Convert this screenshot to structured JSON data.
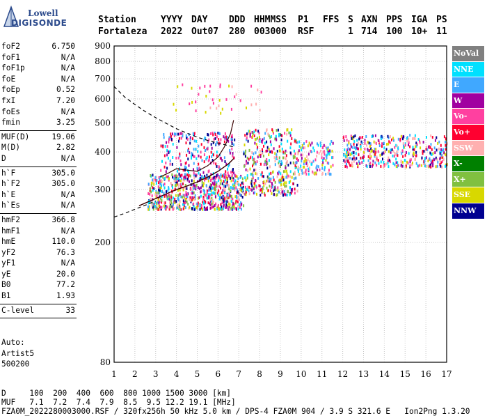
{
  "logo": {
    "line1": "Lowell",
    "line2": "DIGISONDE"
  },
  "header": {
    "labels": [
      "Station",
      "YYYY",
      "DAY",
      "DDD",
      "HHMMSS",
      "P1",
      "FFS",
      "S",
      "AXN",
      "PPS",
      "IGA",
      "PS"
    ],
    "values": [
      "Fortaleza",
      "2022",
      "Out07",
      "280",
      "003000",
      "RSF",
      "1",
      "714",
      "100",
      "10+",
      "11"
    ]
  },
  "params_group1": [
    {
      "k": "foF2",
      "v": "6.750"
    },
    {
      "k": "foF1",
      "v": "N/A"
    },
    {
      "k": "foF1p",
      "v": "N/A"
    },
    {
      "k": "foE",
      "v": "N/A"
    },
    {
      "k": "foEp",
      "v": "0.52"
    },
    {
      "k": "fxI",
      "v": "7.20"
    },
    {
      "k": "foEs",
      "v": "N/A"
    },
    {
      "k": "fmin",
      "v": "3.25"
    }
  ],
  "params_group2": [
    {
      "k": "MUF(D)",
      "v": "19.06"
    },
    {
      "k": "M(D)",
      "v": "2.82"
    },
    {
      "k": "D",
      "v": "N/A"
    }
  ],
  "params_group3": [
    {
      "k": "h`F",
      "v": "305.0"
    },
    {
      "k": "h`F2",
      "v": "305.0"
    },
    {
      "k": "h`E",
      "v": "N/A"
    },
    {
      "k": "h`Es",
      "v": "N/A"
    }
  ],
  "params_group4": [
    {
      "k": "hmF2",
      "v": "366.8"
    },
    {
      "k": "hmF1",
      "v": "N/A"
    },
    {
      "k": "hmE",
      "v": "110.0"
    },
    {
      "k": "yF2",
      "v": "76.3"
    },
    {
      "k": "yF1",
      "v": "N/A"
    },
    {
      "k": "yE",
      "v": "20.0"
    },
    {
      "k": "B0",
      "v": "77.2"
    },
    {
      "k": "B1",
      "v": "1.93"
    }
  ],
  "params_group5": [
    {
      "k": "C-level",
      "v": "33"
    }
  ],
  "auto": {
    "line1": "Auto:",
    "line2": "Artist5",
    "line3": "500200"
  },
  "legend": [
    {
      "label": "NoVal",
      "color": "#808080"
    },
    {
      "label": "NNE",
      "color": "#00e0ff"
    },
    {
      "label": "E",
      "color": "#40a8ff"
    },
    {
      "label": "W",
      "color": "#a000a0"
    },
    {
      "label": "Vo-",
      "color": "#ff40a0"
    },
    {
      "label": "Vo+",
      "color": "#ff0030"
    },
    {
      "label": "SSW",
      "color": "#ffb0b0"
    },
    {
      "label": "X-",
      "color": "#008000"
    },
    {
      "label": "X+",
      "color": "#80c040"
    },
    {
      "label": "SSE",
      "color": "#d8d800"
    },
    {
      "label": "NNW",
      "color": "#000090"
    }
  ],
  "footer": {
    "line1": "D     100  200  400  600  800 1000 1500 3000 [km]",
    "line2": "MUF   7.1  7.2  7.4  7.9  8.5  9.5 12.2 19.1 [MHz]",
    "line3": "FZA0M_2022280003000.RSF / 320fx256h 50 kHz 5.0 km / DPS-4 FZA0M 904 / 3.9 S 321.6 E   Ion2Png 1.3.20"
  },
  "chart_data": {
    "type": "scatter",
    "title": "",
    "xlabel": "",
    "ylabel": "",
    "xlim": [
      1,
      17
    ],
    "ylim": [
      80,
      900
    ],
    "y_scale": "log",
    "grid": true,
    "x_ticks": [
      1,
      2,
      3,
      4,
      5,
      6,
      7,
      8,
      9,
      10,
      11,
      12,
      13,
      14,
      15,
      16,
      17
    ],
    "y_ticks": [
      80,
      200,
      300,
      400,
      500,
      600,
      700,
      800,
      900
    ],
    "clusters": [
      {
        "x": [
          2.6,
          7.2
        ],
        "y": [
          260,
          340
        ],
        "n": 700,
        "colors": [
          "#ffb0b0",
          "#d8d800",
          "#ff40a0",
          "#40a8ff",
          "#00e0ff",
          "#a000a0",
          "#000090",
          "#80c040",
          "#ff0030"
        ]
      },
      {
        "x": [
          3.2,
          6.8
        ],
        "y": [
          330,
          470
        ],
        "n": 260,
        "colors": [
          "#40a8ff",
          "#00e0ff",
          "#a000a0",
          "#ff40a0",
          "#000090",
          "#ff0030"
        ]
      },
      {
        "x": [
          7.2,
          9.8
        ],
        "y": [
          290,
          480
        ],
        "n": 380,
        "colors": [
          "#ffb0b0",
          "#d8d800",
          "#000090",
          "#a000a0",
          "#ff40a0",
          "#00e0ff",
          "#40a8ff",
          "#ff0030",
          "#80c040"
        ]
      },
      {
        "x": [
          9.8,
          11.5
        ],
        "y": [
          340,
          440
        ],
        "n": 140,
        "colors": [
          "#00e0ff",
          "#40a8ff",
          "#ffb0b0",
          "#d8d800",
          "#a000a0",
          "#ff40a0"
        ]
      },
      {
        "x": [
          12.0,
          17.0
        ],
        "y": [
          360,
          460
        ],
        "n": 420,
        "colors": [
          "#40a8ff",
          "#a000a0",
          "#00e0ff",
          "#000090",
          "#ff40a0",
          "#ff0030",
          "#ffb0b0",
          "#d8d800"
        ]
      },
      {
        "x": [
          3.5,
          8.2
        ],
        "y": [
          540,
          680
        ],
        "n": 40,
        "colors": [
          "#d8d800",
          "#ffb0b0",
          "#ff40a0"
        ]
      }
    ],
    "virtual_height_trace": {
      "x": [
        2.2,
        3.0,
        3.5,
        4.0,
        4.5,
        5.0,
        5.5,
        6.0,
        6.5,
        6.75
      ],
      "y": [
        265,
        280,
        290,
        300,
        308,
        318,
        330,
        345,
        365,
        380
      ]
    },
    "trace_upper": {
      "x": [
        3.2,
        3.6,
        4.0,
        4.5,
        5.0,
        5.5,
        6.0,
        6.3,
        6.6,
        6.75
      ],
      "y": [
        330,
        340,
        352,
        348,
        345,
        360,
        385,
        415,
        460,
        510
      ]
    },
    "profile_curve": {
      "x": [
        1.0,
        1.5,
        2.0,
        2.5,
        3.0,
        3.5,
        4.0,
        4.5,
        5.0,
        5.5,
        6.0,
        6.5,
        6.75
      ],
      "y": [
        660,
        610,
        575,
        545,
        520,
        498,
        478,
        462,
        448,
        437,
        428,
        420,
        416
      ]
    },
    "profile_lower": {
      "x": [
        1.0,
        1.5,
        2.0,
        2.5,
        3.0
      ],
      "y": [
        243,
        250,
        258,
        266,
        275
      ]
    }
  }
}
